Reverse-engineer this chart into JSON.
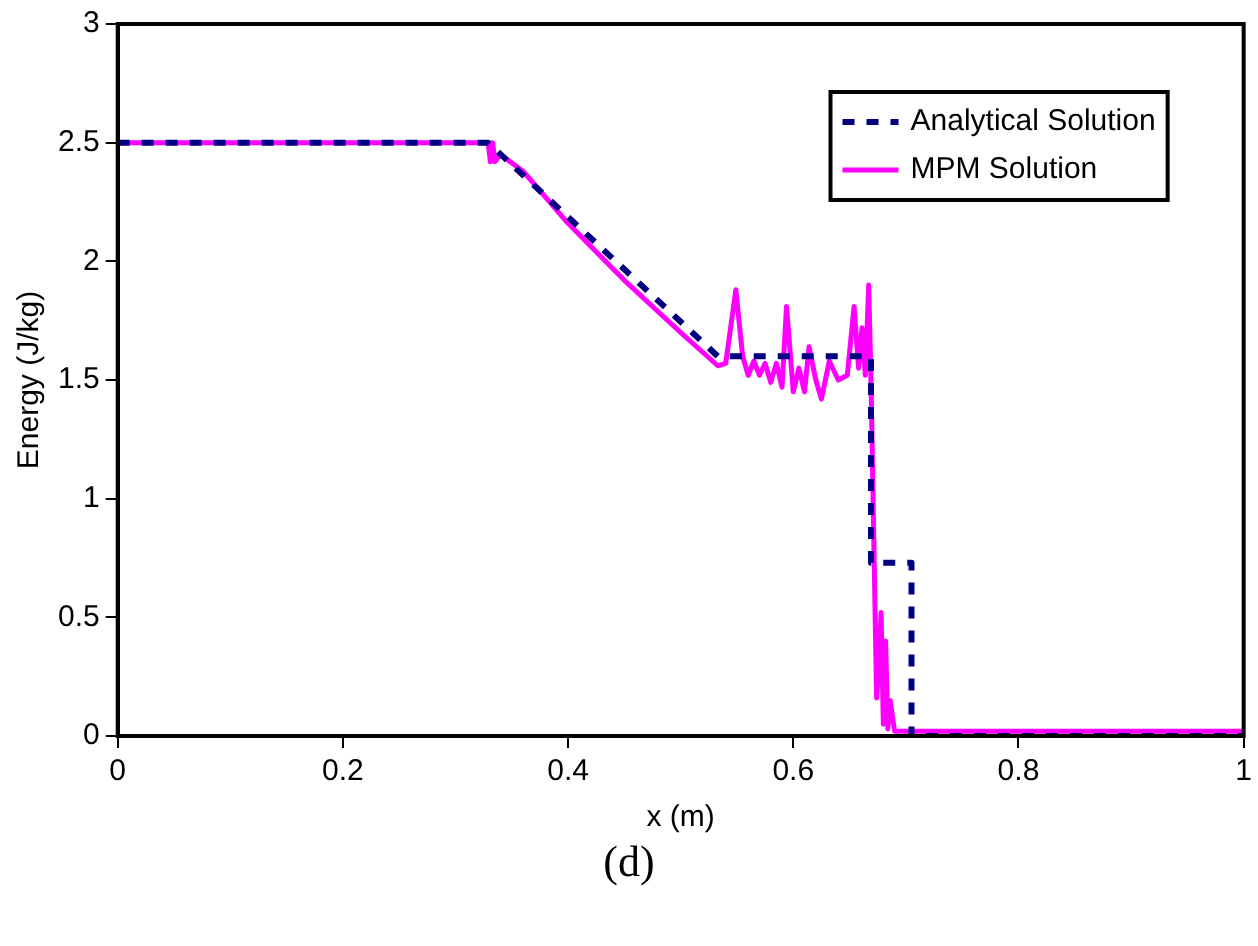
{
  "chart_data": {
    "type": "line",
    "xlabel": "x (m)",
    "ylabel": "Energy (J/kg)",
    "xlim": [
      0,
      1
    ],
    "xticks": [
      0,
      0.2,
      0.4,
      0.6,
      0.8,
      1
    ],
    "ylim": [
      0,
      3
    ],
    "yticks": [
      0,
      0.5,
      1,
      1.5,
      2,
      2.5,
      3
    ],
    "grid": false,
    "legend": "top right",
    "marker": "none",
    "annotations": [
      "(d)"
    ],
    "series": [
      {
        "name": "Analytical Solution",
        "color": "#000080",
        "line_style": "dashed",
        "x": [
          0,
          0.329,
          0.533,
          0.669,
          0.669,
          0.705,
          0.705,
          1
        ],
        "values": [
          2.5,
          2.5,
          1.6,
          1.6,
          0.73,
          0.73,
          0,
          0
        ]
      },
      {
        "name": "MPM Solution",
        "color": "#ff00ff",
        "line_style": "solid",
        "x": [
          0,
          0.329,
          0.331,
          0.333,
          0.335,
          0.34,
          0.36,
          0.4,
          0.45,
          0.5,
          0.533,
          0.54,
          0.549,
          0.555,
          0.56,
          0.565,
          0.57,
          0.575,
          0.58,
          0.585,
          0.59,
          0.594,
          0.6,
          0.605,
          0.61,
          0.614,
          0.62,
          0.625,
          0.632,
          0.64,
          0.648,
          0.654,
          0.658,
          0.661,
          0.664,
          0.667,
          0.669,
          0.672,
          0.674,
          0.676,
          0.678,
          0.68,
          0.682,
          0.684,
          0.686,
          0.69,
          1
        ],
        "values": [
          2.5,
          2.5,
          2.42,
          2.5,
          2.42,
          2.45,
          2.38,
          2.16,
          1.92,
          1.7,
          1.56,
          1.57,
          1.88,
          1.6,
          1.52,
          1.58,
          1.52,
          1.57,
          1.49,
          1.57,
          1.47,
          1.81,
          1.45,
          1.55,
          1.45,
          1.64,
          1.5,
          1.42,
          1.58,
          1.5,
          1.52,
          1.81,
          1.55,
          1.72,
          1.52,
          1.9,
          1.5,
          0.7,
          0.16,
          0.3,
          0.52,
          0.05,
          0.4,
          0.03,
          0.15,
          0.02,
          0.02
        ]
      }
    ]
  }
}
